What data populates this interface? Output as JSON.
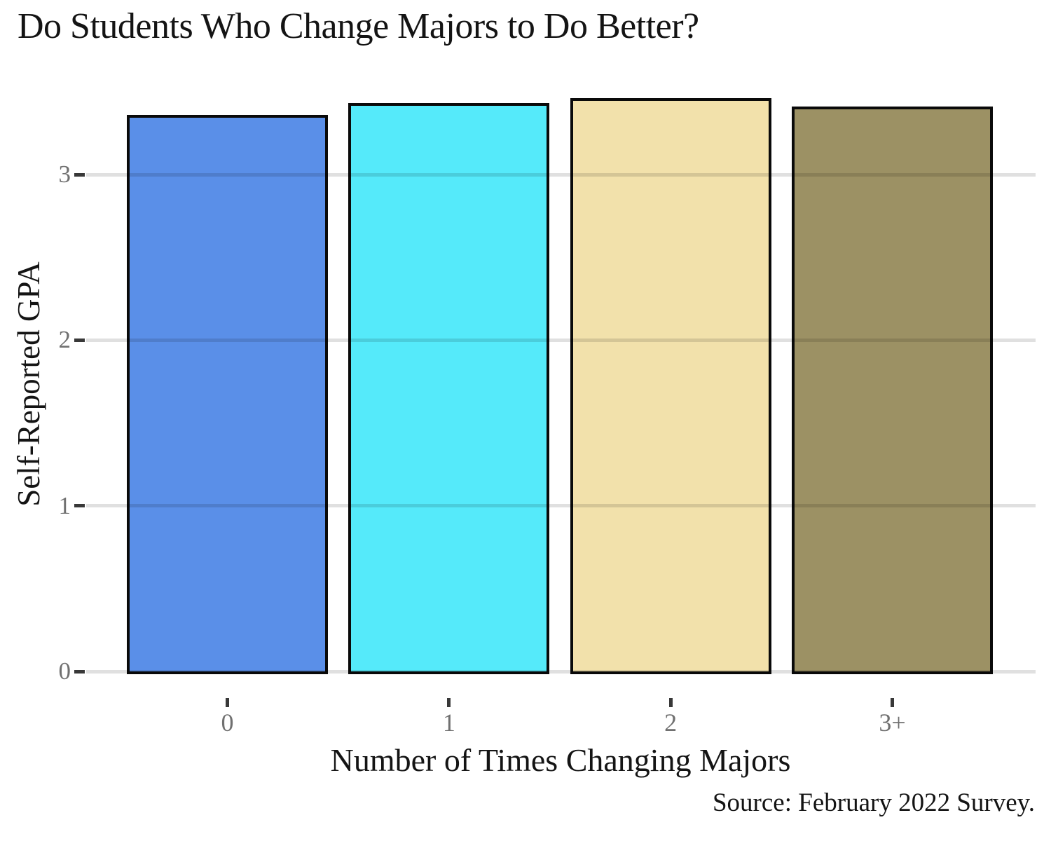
{
  "chart_data": {
    "type": "bar",
    "title": "Do Students Who Change Majors to Do Better?",
    "xlabel": "Number of Times Changing Majors",
    "ylabel": "Self-Reported GPA",
    "caption": "Source: February 2022 Survey.",
    "categories": [
      "0",
      "1",
      "2",
      "3+"
    ],
    "values": [
      3.36,
      3.43,
      3.46,
      3.41
    ],
    "yticks": [
      "0",
      "1",
      "2",
      "3"
    ],
    "ylim": [
      0,
      3.55
    ],
    "grid": "horizontal-major-on-top",
    "legend": "none",
    "colors": {
      "bars": [
        "#5A8FE8",
        "#55EAFA",
        "#F2E1AB",
        "#9C9164"
      ],
      "bar_border": "#0A0A0A",
      "gridline": "rgba(0,0,0,0.12)",
      "tick_mark": "#383838",
      "tick_label": "#707070",
      "text": "#141414",
      "background": "#FFFFFF"
    }
  }
}
